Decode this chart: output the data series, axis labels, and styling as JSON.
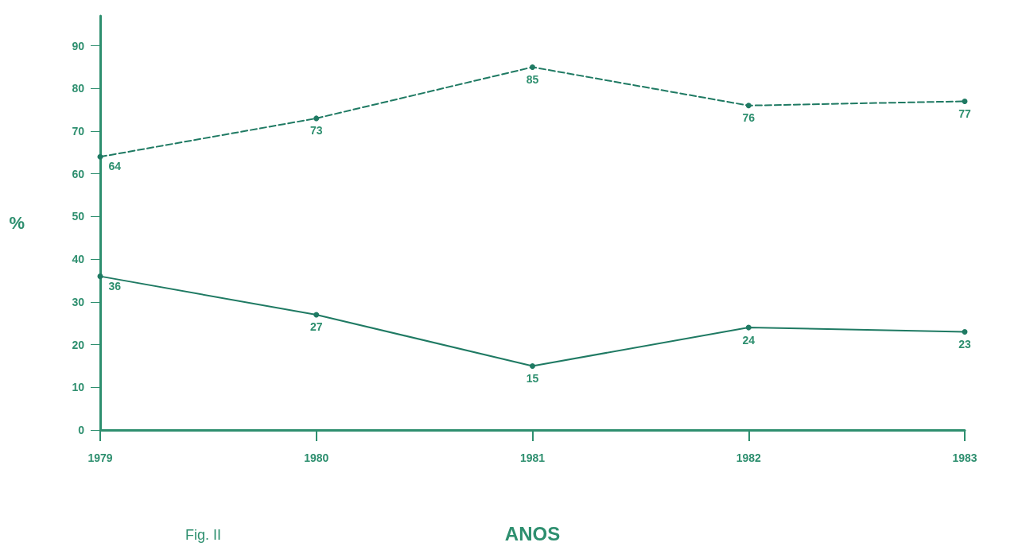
{
  "chart_data": {
    "type": "line",
    "xlabel": "ANOS",
    "ylabel": "%",
    "categories": [
      "1979",
      "1980",
      "1981",
      "1982",
      "1983"
    ],
    "series": [
      {
        "color": "#1f7a63",
        "values": [
          64,
          73,
          85,
          76,
          77
        ],
        "line_style": "dashed"
      },
      {
        "color": "#1f7a63",
        "values": [
          36,
          27,
          15,
          24,
          23
        ],
        "line_style": "solid"
      }
    ],
    "ylim": [
      0,
      97
    ],
    "yticks": [
      0,
      10,
      20,
      30,
      40,
      50,
      60,
      70,
      80,
      90
    ],
    "data_labels": true,
    "marker": "circle",
    "grid": false,
    "annotations": [
      "Fig. II"
    ]
  }
}
